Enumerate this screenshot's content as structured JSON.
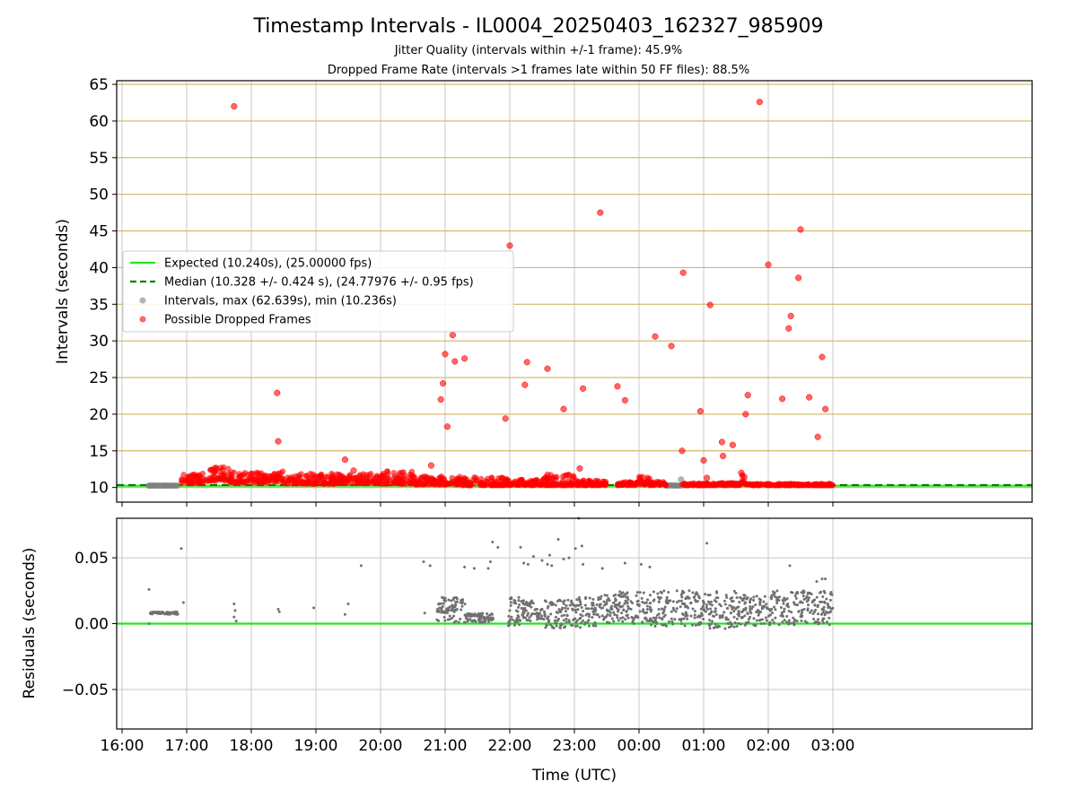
{
  "figure": {
    "title": "Timestamp Intervals - IL0004_20250403_162327_985909",
    "subtitle1": "Jitter Quality (intervals within +/-1 frame): 45.9%",
    "subtitle2": "Dropped Frame Rate (intervals >1 frames late within 50 FF files): 88.5%"
  },
  "colors": {
    "expected": "#1ee61e",
    "median": "#008000",
    "intervals": "#808080",
    "dropped": "#ff0000",
    "hgrid": "#d2b464",
    "vgrid": "#c8c8c8",
    "residual": "#707070"
  },
  "chart_data": [
    {
      "type": "scatter",
      "xlabel": "",
      "ylabel": "Intervals (seconds)",
      "ylim": [
        8,
        65.5
      ],
      "yticks": [
        10,
        15,
        20,
        25,
        30,
        35,
        40,
        45,
        50,
        55,
        60,
        65
      ],
      "hgrid": true,
      "vgrid": true,
      "legend_position": "center-left",
      "legend": [
        {
          "key": "expected",
          "label": "Expected (10.240s), (25.00000 fps)",
          "style": "solid-line"
        },
        {
          "key": "median",
          "label": "Median (10.328 +/- 0.424 s), (24.77976 +/- 0.95 fps)",
          "style": "dashed-line"
        },
        {
          "key": "intervals",
          "label": "Intervals, max (62.639s), min (10.236s)",
          "style": "marker"
        },
        {
          "key": "dropped",
          "label": "Possible Dropped Frames",
          "style": "marker"
        }
      ],
      "series": [
        {
          "name": "Expected (10.240s), (25.00000 fps)",
          "key": "expected",
          "type": "hline",
          "y": 10.24
        },
        {
          "name": "Median (10.328 +/- 0.424 s), (24.77976 +/- 0.95 fps)",
          "key": "median",
          "type": "hline",
          "y": 10.328
        },
        {
          "name": "Intervals, max (62.639s), min (10.236s)",
          "key": "intervals",
          "type": "band",
          "segments": [
            [
              "16:25",
              "16:52",
              10.24,
              10.26
            ],
            [
              "00:25",
              "00:40",
              10.24,
              10.3
            ]
          ],
          "points": [
            [
              "16:25",
              10.25
            ],
            [
              "16:30",
              10.25
            ],
            [
              "16:40",
              10.26
            ],
            [
              "00:39",
              11.1
            ],
            [
              "01:03",
              10.3
            ],
            [
              "02:20",
              10.3
            ]
          ]
        },
        {
          "name": "Possible Dropped Frames",
          "key": "dropped",
          "type": "scatter",
          "bands": [
            [
              "16:55",
              "17:20",
              10.6,
              11.9
            ],
            [
              "17:20",
              "17:40",
              10.9,
              12.8
            ],
            [
              "17:40",
              "18:20",
              10.7,
              12.1
            ],
            [
              "18:20",
              "18:30",
              10.8,
              12.3
            ],
            [
              "18:30",
              "19:20",
              10.5,
              11.9
            ],
            [
              "19:20",
              "20:00",
              10.6,
              12.0
            ],
            [
              "20:00",
              "20:30",
              10.5,
              12.3
            ],
            [
              "20:30",
              "21:15",
              10.4,
              11.6
            ],
            [
              "21:15",
              "22:00",
              10.3,
              11.4
            ],
            [
              "22:00",
              "22:30",
              10.3,
              11.2
            ],
            [
              "22:30",
              "23:00",
              10.3,
              11.8
            ],
            [
              "23:00",
              "23:30",
              10.3,
              11.0
            ],
            [
              "23:40",
              "00:00",
              10.3,
              10.8
            ],
            [
              "00:00",
              "00:10",
              10.4,
              11.8
            ],
            [
              "00:10",
              "00:25",
              10.3,
              10.8
            ],
            [
              "00:40",
              "01:00",
              10.3,
              10.6
            ],
            [
              "01:00",
              "01:35",
              10.3,
              10.6
            ],
            [
              "01:35",
              "01:40",
              10.3,
              11.8
            ],
            [
              "01:40",
              "03:00",
              10.3,
              10.5
            ]
          ],
          "points": [
            [
              "17:44",
              62
            ],
            [
              "18:24",
              22.9
            ],
            [
              "18:25",
              16.3
            ],
            [
              "19:27",
              13.8
            ],
            [
              "19:35",
              12.3
            ],
            [
              "20:47",
              13
            ],
            [
              "20:56",
              22
            ],
            [
              "20:58",
              24.2
            ],
            [
              "21:00",
              28.2
            ],
            [
              "21:02",
              18.3
            ],
            [
              "21:07",
              30.8
            ],
            [
              "21:09",
              27.2
            ],
            [
              "21:18",
              27.6
            ],
            [
              "21:56",
              19.4
            ],
            [
              "22:00",
              43
            ],
            [
              "22:14",
              24
            ],
            [
              "22:16",
              27.1
            ],
            [
              "22:35",
              26.2
            ],
            [
              "22:50",
              20.7
            ],
            [
              "23:05",
              12.6
            ],
            [
              "23:08",
              23.5
            ],
            [
              "23:24",
              47.5
            ],
            [
              "23:40",
              23.8
            ],
            [
              "23:47",
              21.9
            ],
            [
              "00:15",
              30.6
            ],
            [
              "00:30",
              29.3
            ],
            [
              "00:40",
              15
            ],
            [
              "00:41",
              39.3
            ],
            [
              "00:57",
              20.4
            ],
            [
              "01:00",
              13.7
            ],
            [
              "01:03",
              11.3
            ],
            [
              "01:06",
              34.9
            ],
            [
              "01:17",
              16.2
            ],
            [
              "01:18",
              14.3
            ],
            [
              "01:27",
              15.8
            ],
            [
              "01:35",
              12
            ],
            [
              "01:39",
              20
            ],
            [
              "01:41",
              22.6
            ],
            [
              "01:52",
              62.6
            ],
            [
              "02:00",
              40.4
            ],
            [
              "02:13",
              22.1
            ],
            [
              "02:19",
              31.7
            ],
            [
              "02:21",
              33.4
            ],
            [
              "02:28",
              38.6
            ],
            [
              "02:30",
              45.2
            ],
            [
              "02:38",
              22.3
            ],
            [
              "02:46",
              16.9
            ],
            [
              "02:50",
              27.8
            ],
            [
              "02:53",
              20.7
            ]
          ]
        }
      ]
    },
    {
      "type": "scatter",
      "xlabel": "Time (UTC)",
      "ylabel": "Residuals (seconds)",
      "ylim": [
        -0.08,
        0.08
      ],
      "yticks": [
        -0.05,
        0.0,
        0.05
      ],
      "ytick_labels": [
        "−0.05",
        "0.00",
        "0.05"
      ],
      "xticks": [
        "16:00",
        "17:00",
        "18:00",
        "19:00",
        "20:00",
        "21:00",
        "22:00",
        "23:00",
        "00:00",
        "01:00",
        "02:00",
        "03:00"
      ],
      "grid": true,
      "series": [
        {
          "name": "",
          "key": "expected",
          "type": "hline",
          "y": 0.0
        },
        {
          "name": "",
          "key": "residual",
          "type": "scatter",
          "bands": [
            [
              "16:26",
              "16:52",
              0.007,
              0.009
            ],
            [
              "20:52",
              "21:20",
              0.001,
              0.02
            ],
            [
              "21:20",
              "21:45",
              0.001,
              0.008
            ],
            [
              "21:58",
              "22:10",
              -0.002,
              0.02
            ],
            [
              "22:10",
              "22:25",
              0.002,
              0.018
            ],
            [
              "22:25",
              "22:30",
              0.002,
              0.012
            ],
            [
              "22:30",
              "23:00",
              -0.004,
              0.018
            ],
            [
              "23:00",
              "23:20",
              -0.003,
              0.02
            ],
            [
              "23:20",
              "23:40",
              0.0,
              0.022
            ],
            [
              "23:40",
              "00:05",
              0.0,
              0.025
            ],
            [
              "00:05",
              "00:10",
              0.0,
              0.02
            ],
            [
              "00:10",
              "01:00",
              -0.002,
              0.025
            ],
            [
              "01:00",
              "01:30",
              -0.004,
              0.025
            ],
            [
              "01:30",
              "02:00",
              -0.002,
              0.022
            ],
            [
              "02:00",
              "03:00",
              -0.001,
              0.025
            ]
          ],
          "points": [
            [
              "16:25",
              0.026
            ],
            [
              "16:25",
              0.0
            ],
            [
              "16:55",
              0.057
            ],
            [
              "16:57",
              0.016
            ],
            [
              "17:44",
              0.015
            ],
            [
              "17:45",
              0.01
            ],
            [
              "17:44",
              0.005
            ],
            [
              "17:46",
              0.002
            ],
            [
              "18:25",
              0.011
            ],
            [
              "18:26",
              0.009
            ],
            [
              "18:58",
              0.012
            ],
            [
              "19:27",
              0.007
            ],
            [
              "19:30",
              0.015
            ],
            [
              "19:42",
              0.044
            ],
            [
              "20:40",
              0.047
            ],
            [
              "20:46",
              0.044
            ],
            [
              "20:41",
              0.008
            ],
            [
              "21:18",
              0.043
            ],
            [
              "21:27",
              0.042
            ],
            [
              "21:40",
              0.042
            ],
            [
              "21:42",
              0.047
            ],
            [
              "21:44",
              0.062
            ],
            [
              "21:49",
              0.058
            ],
            [
              "22:10",
              0.058
            ],
            [
              "22:13",
              0.046
            ],
            [
              "22:17",
              0.045
            ],
            [
              "22:22",
              0.051
            ],
            [
              "22:30",
              0.048
            ],
            [
              "22:35",
              0.045
            ],
            [
              "22:37",
              0.052
            ],
            [
              "22:39",
              0.044
            ],
            [
              "22:45",
              0.064
            ],
            [
              "22:50",
              0.049
            ],
            [
              "22:55",
              0.05
            ],
            [
              "23:01",
              0.057
            ],
            [
              "23:04",
              0.08
            ],
            [
              "23:07",
              0.059
            ],
            [
              "23:08",
              0.045
            ],
            [
              "23:26",
              0.042
            ],
            [
              "23:47",
              0.046
            ],
            [
              "00:02",
              0.045
            ],
            [
              "00:10",
              0.043
            ],
            [
              "01:03",
              0.061
            ],
            [
              "02:20",
              0.044
            ],
            [
              "02:45",
              0.032
            ],
            [
              "02:50",
              0.034
            ],
            [
              "02:53",
              0.034
            ]
          ]
        }
      ]
    }
  ]
}
